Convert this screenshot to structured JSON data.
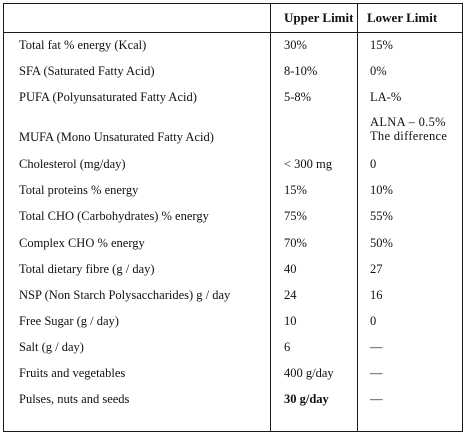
{
  "table": {
    "headers": {
      "upper": "Upper Limit",
      "lower": "Lower Limit"
    },
    "rows": [
      {
        "param": "Total fat % energy (Kcal)",
        "upper": "30%",
        "lower": "15%"
      },
      {
        "param": "SFA (Saturated Fatty Acid)",
        "upper": "8-10%",
        "lower": "0%"
      },
      {
        "param": "PUFA (Polyunsaturated Fatty Acid)",
        "upper": "5-8%",
        "lower": "LA-%"
      },
      {
        "param": "MUFA (Mono Unsaturated Fatty Acid)",
        "upper": "",
        "lower": ""
      },
      {
        "param": "Cholesterol (mg/day)",
        "upper": "< 300 mg",
        "lower": "0"
      },
      {
        "param": "Total proteins % energy",
        "upper": "15%",
        "lower": "10%"
      },
      {
        "param": "Total CHO (Carbohydrates) % energy",
        "upper": "75%",
        "lower": "55%"
      },
      {
        "param": "Complex CHO % energy",
        "upper": "70%",
        "lower": "50%"
      },
      {
        "param": "Total dietary fibre (g / day)",
        "upper": "40",
        "lower": "27"
      },
      {
        "param": "NSP (Non Starch Polysaccharides) g / day",
        "upper": "24",
        "lower": "16"
      },
      {
        "param": "Free Sugar (g / day)",
        "upper": "10",
        "lower": "0"
      },
      {
        "param": "Salt (g / day)",
        "upper": "6",
        "lower": "—"
      },
      {
        "param": "Fruits and vegetables",
        "upper": "400 g/day",
        "lower": "—"
      },
      {
        "param": "Pulses, nuts and seeds",
        "upper": "30 g/day",
        "lower": "—"
      }
    ],
    "mufa_note": {
      "line1": "ALNA – 0.5%",
      "line2": "The difference"
    }
  }
}
